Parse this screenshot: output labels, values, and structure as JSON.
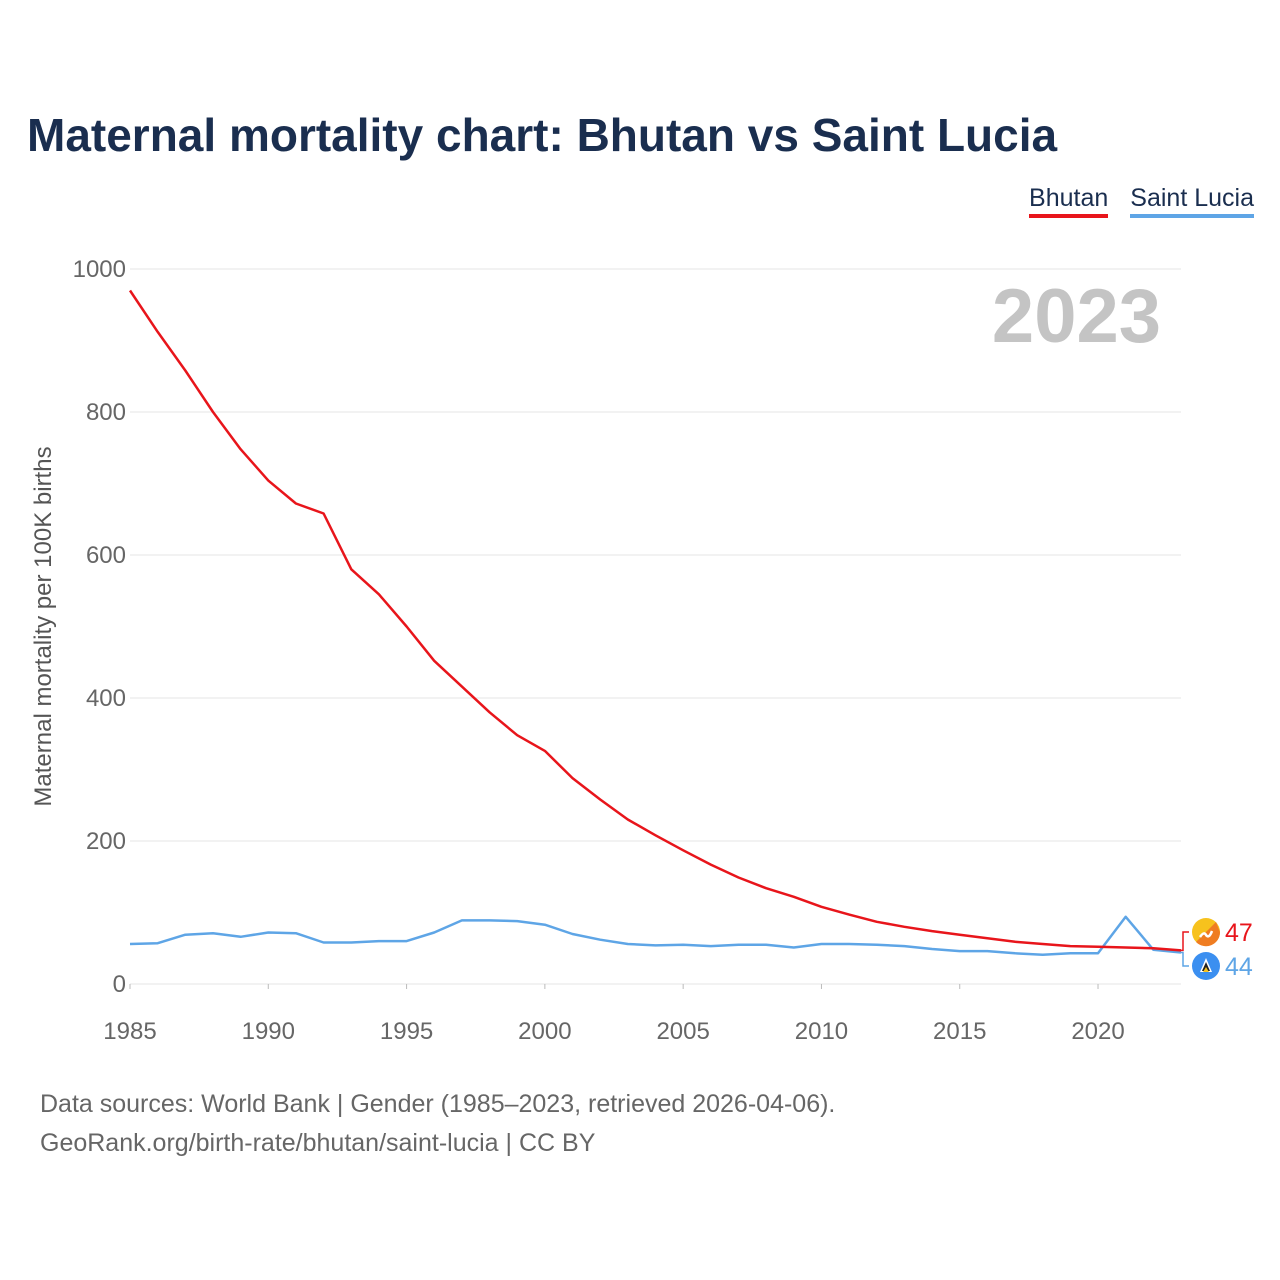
{
  "chart_data": {
    "type": "line",
    "title": "Maternal mortality chart: Bhutan vs Saint Lucia",
    "ylabel": "Maternal mortality per 100K births",
    "xlabel": "",
    "year_label": "2023",
    "x": [
      1985,
      1986,
      1987,
      1988,
      1989,
      1990,
      1991,
      1992,
      1993,
      1994,
      1995,
      1996,
      1997,
      1998,
      1999,
      2000,
      2001,
      2002,
      2003,
      2004,
      2005,
      2006,
      2007,
      2008,
      2009,
      2010,
      2011,
      2012,
      2013,
      2014,
      2015,
      2016,
      2017,
      2018,
      2019,
      2020,
      2021,
      2022,
      2023
    ],
    "xlim": [
      1985,
      2023
    ],
    "ylim": [
      0,
      1000
    ],
    "x_ticks": [
      1985,
      1990,
      1995,
      2000,
      2005,
      2010,
      2015,
      2020
    ],
    "y_ticks": [
      0,
      200,
      400,
      600,
      800,
      1000
    ],
    "grid": true,
    "legend_position": "top-right",
    "series": [
      {
        "name": "Bhutan",
        "color": "#e8151b",
        "end_label": "47",
        "values": [
          970,
          912,
          858,
          800,
          748,
          704,
          672,
          658,
          580,
          545,
          500,
          452,
          416,
          380,
          348,
          326,
          288,
          258,
          230,
          208,
          187,
          167,
          149,
          134,
          122,
          108,
          97,
          87,
          80,
          74,
          69,
          64,
          59,
          56,
          53,
          52,
          51,
          50,
          47
        ]
      },
      {
        "name": "Saint Lucia",
        "color": "#5ea5e6",
        "end_label": "44",
        "values": [
          56,
          57,
          69,
          71,
          66,
          72,
          71,
          58,
          58,
          60,
          60,
          72,
          89,
          89,
          88,
          83,
          70,
          62,
          56,
          54,
          55,
          53,
          55,
          55,
          51,
          56,
          56,
          55,
          53,
          49,
          46,
          46,
          43,
          41,
          43,
          43,
          94,
          48,
          44
        ]
      }
    ]
  },
  "legend": {
    "items": [
      "Bhutan",
      "Saint Lucia"
    ]
  },
  "footer": {
    "line1": "Data sources: World Bank | Gender (1985–2023, retrieved 2026-04-06).",
    "line2": "GeoRank.org/birth-rate/bhutan/saint-lucia | CC BY"
  }
}
